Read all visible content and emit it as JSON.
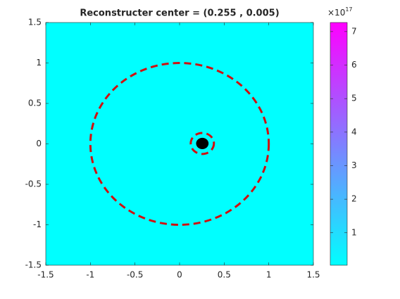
{
  "chart_data": {
    "type": "field",
    "title": "Reconstructer center = (0.255 , 0.005)",
    "xlim": [
      -1.5,
      1.5
    ],
    "ylim": [
      -1.5,
      1.5
    ],
    "xticks": [
      -1.5,
      -1,
      -0.5,
      0,
      0.5,
      1,
      1.5
    ],
    "yticks": [
      -1.5,
      -1,
      -0.5,
      0,
      0.5,
      1,
      1.5
    ],
    "background_color": "#00ffff",
    "circles": [
      {
        "center_x": 0,
        "center_y": 0,
        "radius": 1,
        "color": "#d01010"
      },
      {
        "center_x": 0.255,
        "center_y": 0.005,
        "radius": 0.13,
        "color": "#d01010"
      }
    ],
    "point": {
      "x": 0.255,
      "y": 0.005,
      "radius": 0.07,
      "color": "#000000"
    },
    "colorbar": {
      "lim": [
        0.03,
        7.27
      ],
      "ticks": [
        1,
        2,
        3,
        4,
        5,
        6,
        7
      ],
      "colors": [
        "#00ffff",
        "#ff00ff"
      ],
      "scale_base": "×10",
      "scale_exponent": "17"
    }
  }
}
